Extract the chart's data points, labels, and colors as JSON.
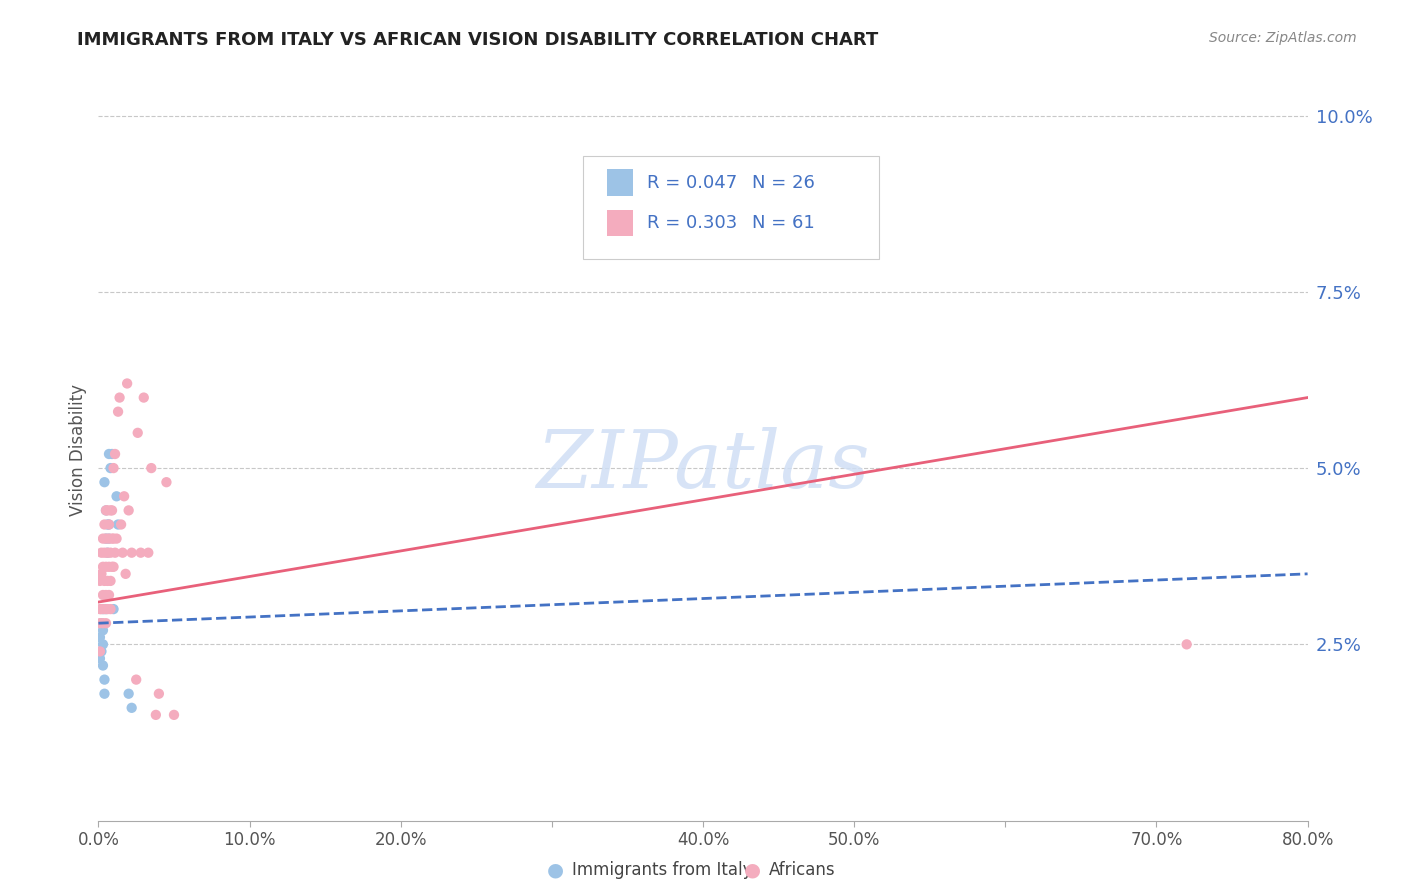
{
  "title": "IMMIGRANTS FROM ITALY VS AFRICAN VISION DISABILITY CORRELATION CHART",
  "source": "Source: ZipAtlas.com",
  "ylabel": "Vision Disability",
  "yticks": [
    0.0,
    0.025,
    0.05,
    0.075,
    0.1
  ],
  "ytick_labels": [
    "",
    "2.5%",
    "5.0%",
    "7.5%",
    "10.0%"
  ],
  "xlim": [
    0.0,
    0.8
  ],
  "ylim": [
    0.0,
    0.105
  ],
  "legend_r1": "R = 0.047",
  "legend_n1": "N = 26",
  "legend_r2": "R = 0.303",
  "legend_n2": "N = 61",
  "legend_label1": "Immigrants from Italy",
  "legend_label2": "Africans",
  "color_blue": "#9DC3E6",
  "color_pink": "#F4ACBE",
  "color_blue_line": "#4472C4",
  "color_pink_line": "#E8607A",
  "color_legend_text": "#4472C4",
  "watermark_color": "#D0DFF5",
  "blue_line": [
    0.0,
    0.028,
    0.8,
    0.035
  ],
  "pink_line": [
    0.0,
    0.031,
    0.8,
    0.06
  ],
  "blue_x": [
    0.001,
    0.001,
    0.002,
    0.002,
    0.003,
    0.003,
    0.003,
    0.003,
    0.004,
    0.004,
    0.004,
    0.005,
    0.005,
    0.005,
    0.006,
    0.006,
    0.007,
    0.007,
    0.007,
    0.008,
    0.009,
    0.01,
    0.012,
    0.013,
    0.02,
    0.022
  ],
  "blue_y": [
    0.023,
    0.026,
    0.024,
    0.028,
    0.022,
    0.025,
    0.027,
    0.03,
    0.018,
    0.02,
    0.048,
    0.03,
    0.04,
    0.044,
    0.038,
    0.042,
    0.04,
    0.042,
    0.052,
    0.05,
    0.052,
    0.03,
    0.046,
    0.042,
    0.018,
    0.016
  ],
  "pink_x": [
    0.001,
    0.001,
    0.001,
    0.001,
    0.002,
    0.002,
    0.002,
    0.003,
    0.003,
    0.003,
    0.003,
    0.004,
    0.004,
    0.004,
    0.004,
    0.005,
    0.005,
    0.005,
    0.005,
    0.005,
    0.006,
    0.006,
    0.006,
    0.006,
    0.007,
    0.007,
    0.007,
    0.007,
    0.008,
    0.008,
    0.008,
    0.008,
    0.009,
    0.009,
    0.009,
    0.01,
    0.01,
    0.01,
    0.011,
    0.011,
    0.012,
    0.013,
    0.014,
    0.015,
    0.016,
    0.017,
    0.018,
    0.019,
    0.02,
    0.022,
    0.025,
    0.026,
    0.028,
    0.03,
    0.033,
    0.035,
    0.038,
    0.04,
    0.045,
    0.05,
    0.72
  ],
  "pink_y": [
    0.024,
    0.028,
    0.03,
    0.034,
    0.03,
    0.035,
    0.038,
    0.028,
    0.032,
    0.036,
    0.04,
    0.03,
    0.034,
    0.038,
    0.042,
    0.028,
    0.032,
    0.036,
    0.04,
    0.044,
    0.03,
    0.034,
    0.038,
    0.044,
    0.032,
    0.036,
    0.04,
    0.042,
    0.03,
    0.034,
    0.038,
    0.044,
    0.036,
    0.04,
    0.044,
    0.036,
    0.04,
    0.05,
    0.038,
    0.052,
    0.04,
    0.058,
    0.06,
    0.042,
    0.038,
    0.046,
    0.035,
    0.062,
    0.044,
    0.038,
    0.02,
    0.055,
    0.038,
    0.06,
    0.038,
    0.05,
    0.015,
    0.018,
    0.048,
    0.015,
    0.025
  ],
  "background_color": "#FFFFFF",
  "grid_color": "#C8C8C8"
}
